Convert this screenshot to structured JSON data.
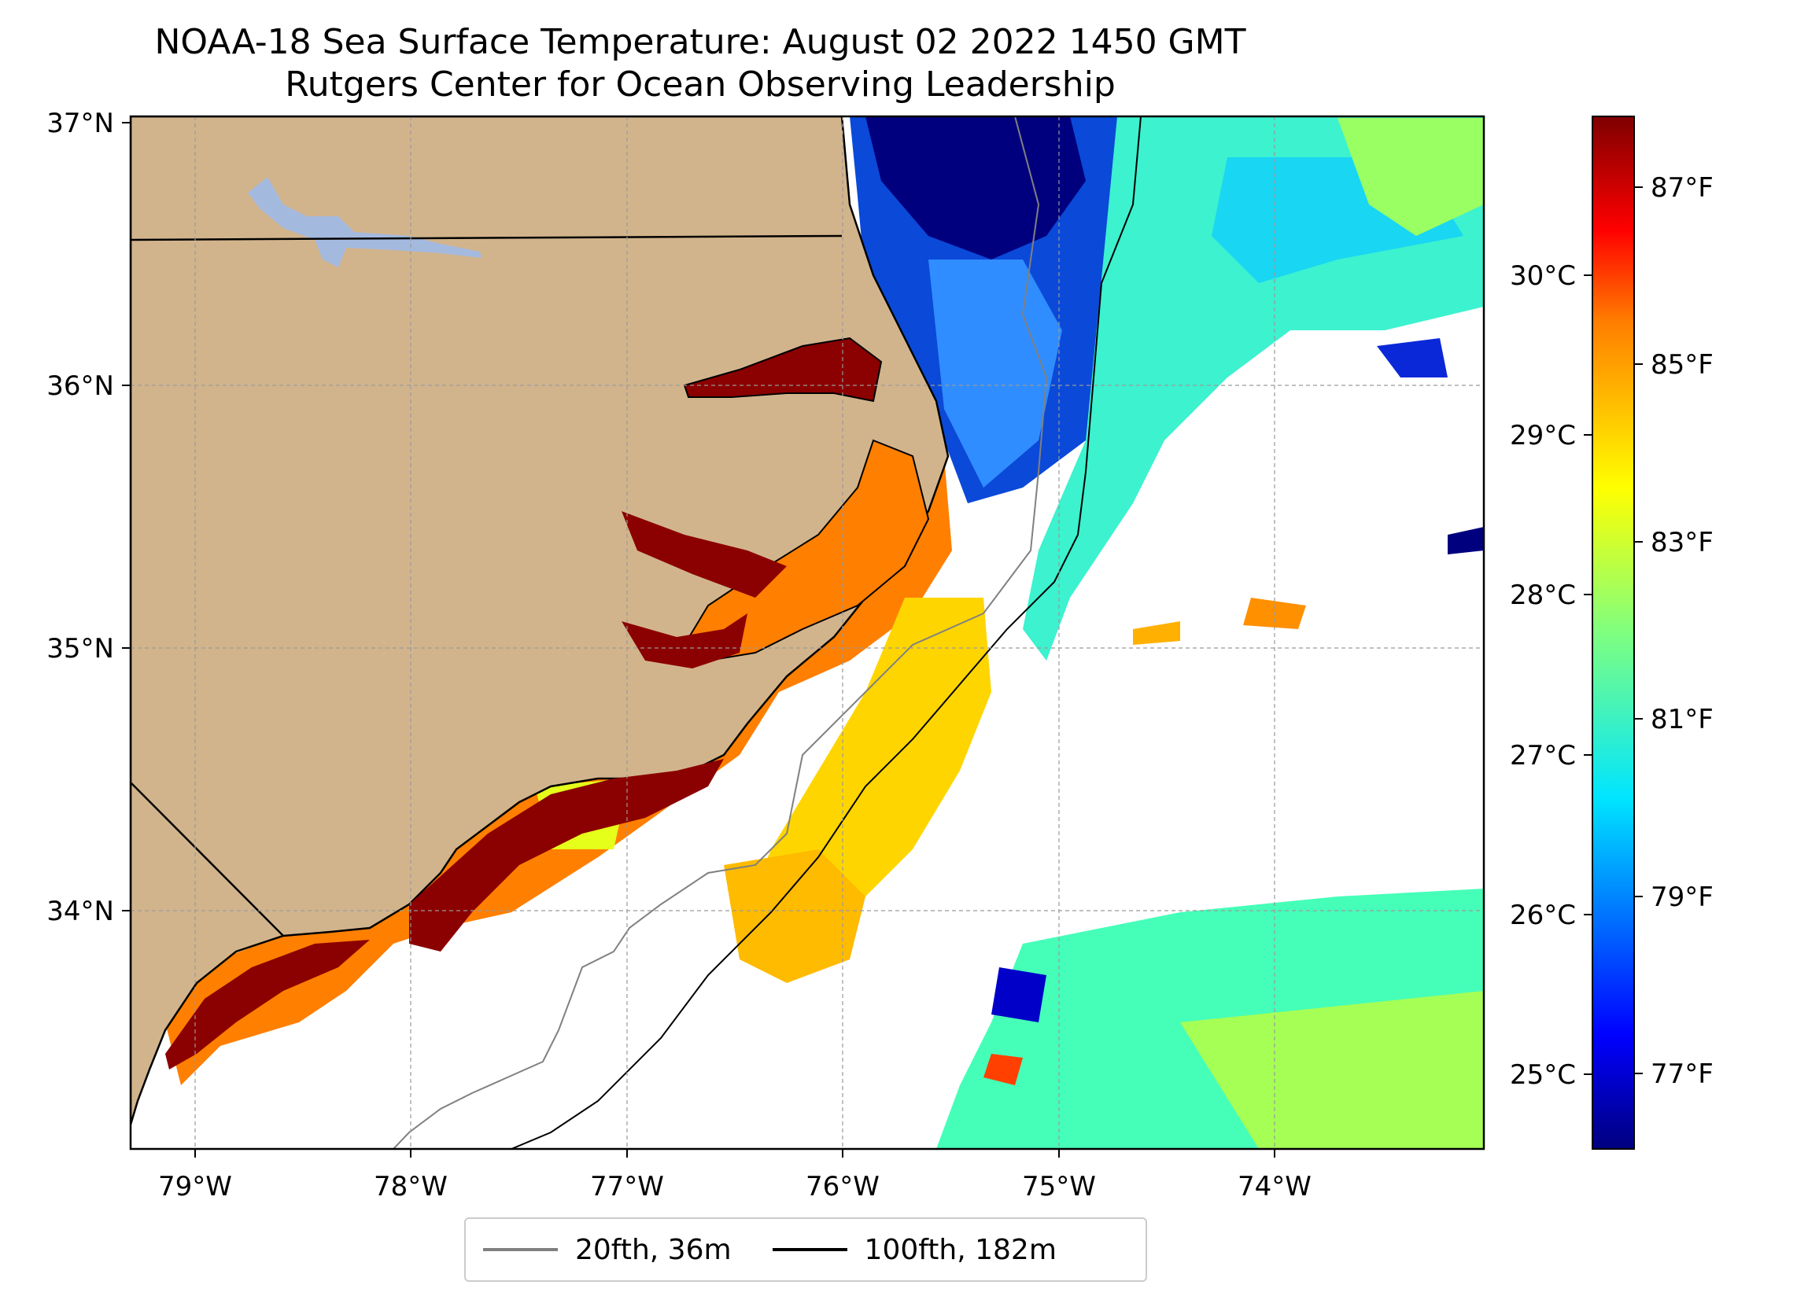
{
  "title": {
    "line1": "NOAA-18 Sea Surface Temperature: August 02 2022 1450 GMT",
    "line2": "Rutgers Center for Ocean Observing Leadership"
  },
  "map": {
    "lon_ticks": [
      "79°W",
      "78°W",
      "77°W",
      "76°W",
      "75°W",
      "74°W"
    ],
    "lat_ticks": [
      "37°N",
      "36°N",
      "35°N",
      "34°N"
    ],
    "land_color": "#d2b48c",
    "lake_color": "#a4b9de",
    "isobath_20_color": "#808080",
    "isobath_100_color": "#000000"
  },
  "colorbar": {
    "celsius_ticks": [
      "30°C",
      "29°C",
      "28°C",
      "27°C",
      "26°C",
      "25°C"
    ],
    "fahrenheit_ticks": [
      "87°F",
      "85°F",
      "83°F",
      "81°F",
      "79°F",
      "77°F"
    ],
    "colormap": "jet",
    "colors": [
      "#00007f",
      "#0000ff",
      "#007fff",
      "#00ffff",
      "#7fff7f",
      "#ffff00",
      "#ff7f00",
      "#ff0000",
      "#7f0000"
    ]
  },
  "legend": {
    "items": [
      {
        "label": "20fth, 36m",
        "color": "#808080"
      },
      {
        "label": "100fth, 182m",
        "color": "#000000"
      }
    ]
  }
}
